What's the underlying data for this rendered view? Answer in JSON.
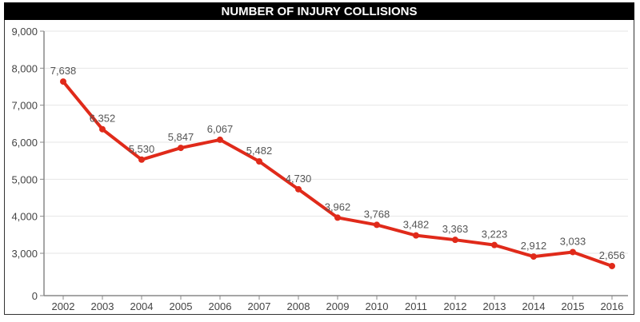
{
  "chart_data": {
    "type": "line",
    "title": "NUMBER OF INJURY COLLISIONS",
    "xlabel": "",
    "ylabel": "",
    "categories": [
      "2002",
      "2003",
      "2004",
      "2005",
      "2006",
      "2007",
      "2008",
      "2009",
      "2010",
      "2011",
      "2012",
      "2013",
      "2014",
      "2015",
      "2016"
    ],
    "values": [
      7638,
      6352,
      5530,
      5847,
      6067,
      5482,
      4730,
      3962,
      3768,
      3482,
      3363,
      3223,
      2912,
      3033,
      2656
    ],
    "data_labels": [
      "7,638",
      "6,352",
      "5,530",
      "5,847",
      "6,067",
      "5,482",
      "4,730",
      "3,962",
      "3,768",
      "3,482",
      "3,363",
      "3,223",
      "2,912",
      "3,033",
      "2,656"
    ],
    "y_ticks": [
      {
        "value": 0,
        "label": "0"
      },
      {
        "value": 3000,
        "label": "3,000"
      },
      {
        "value": 4000,
        "label": "4,000"
      },
      {
        "value": 5000,
        "label": "5,000"
      },
      {
        "value": 6000,
        "label": "6,000"
      },
      {
        "value": 7000,
        "label": "7,000"
      },
      {
        "value": 8000,
        "label": "8,000"
      },
      {
        "value": 9000,
        "label": "9,000"
      }
    ],
    "ylim": [
      0,
      9000
    ],
    "axis_break": "y-axis jumps from 0 to 3,000",
    "grid": true,
    "legend": "none",
    "colors": {
      "line": "#e02a1a",
      "grid": "#e6e6e6",
      "axis": "#888888",
      "title_bg": "#000000"
    }
  }
}
